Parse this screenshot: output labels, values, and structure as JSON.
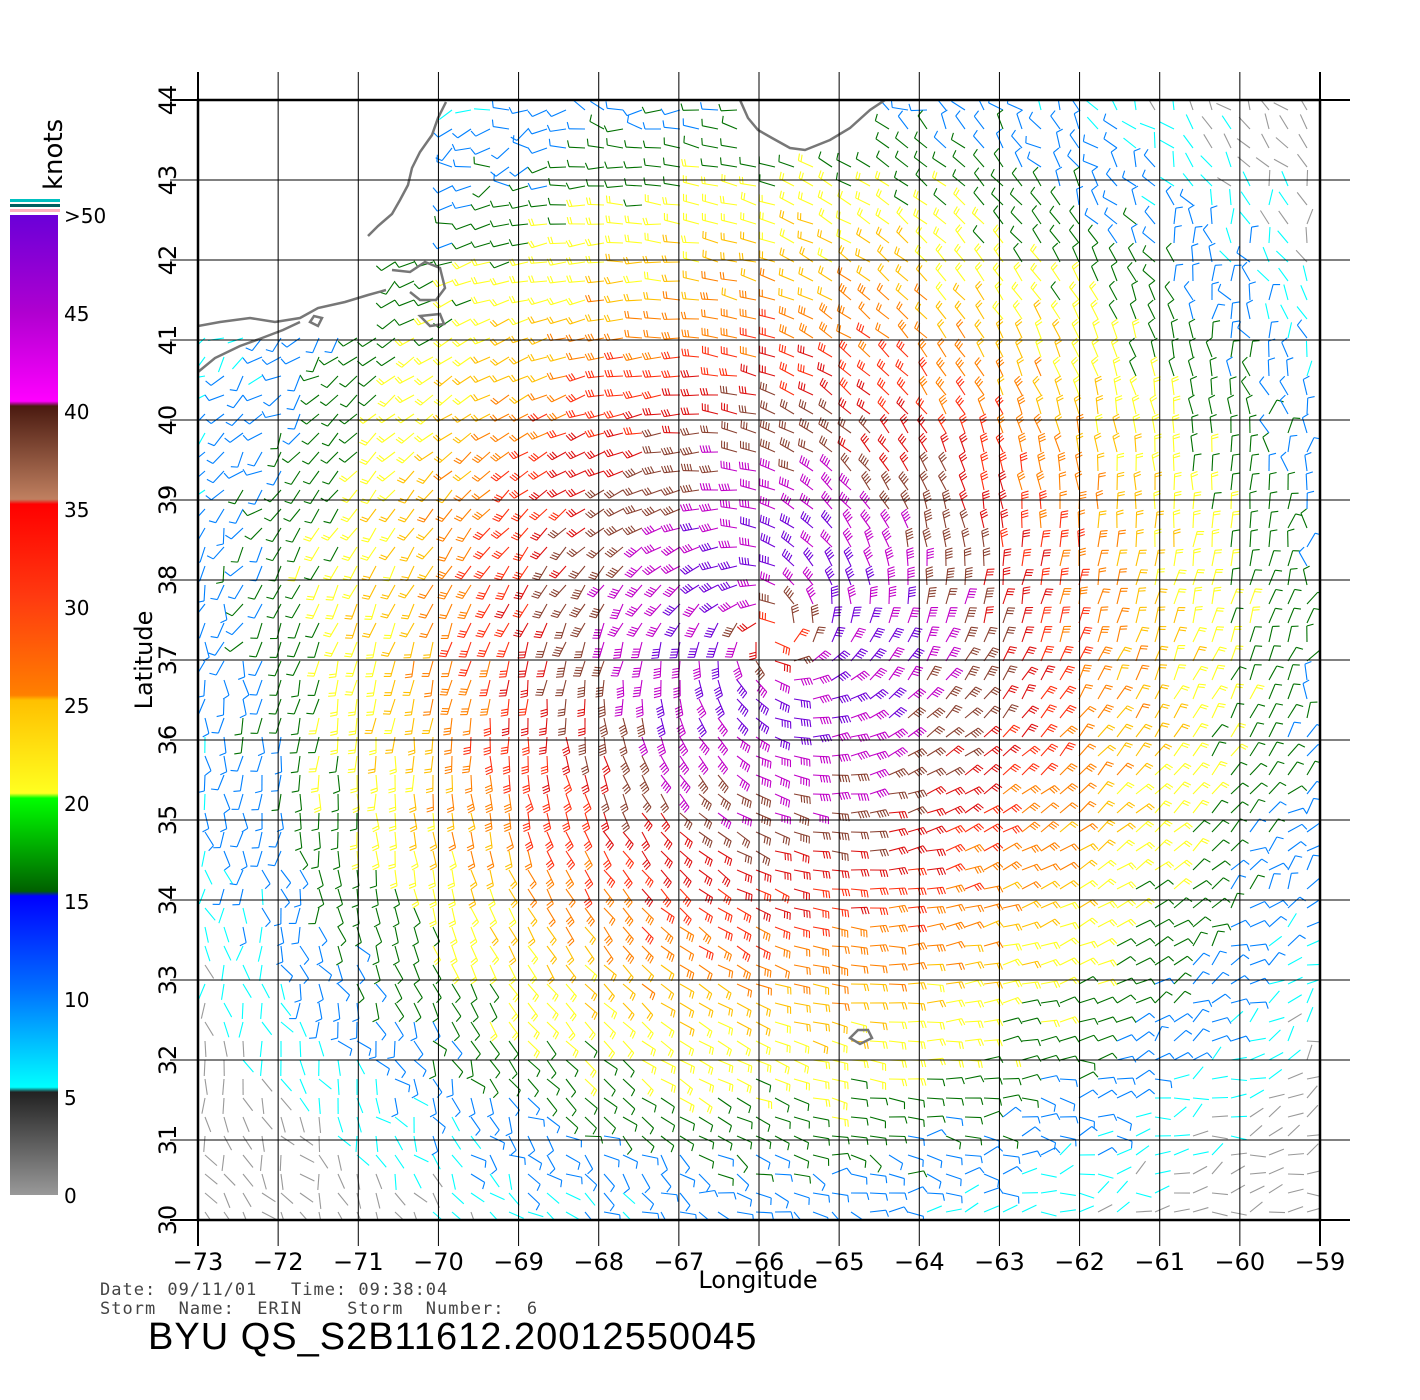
{
  "map": {
    "lon_ticks": [
      "−73",
      "−72",
      "−71",
      "−70",
      "−69",
      "−68",
      "−67",
      "−66",
      "−65",
      "−64",
      "−63",
      "−62",
      "−61",
      "−60",
      "−59"
    ],
    "lat_ticks": [
      "30",
      "31",
      "32",
      "33",
      "34",
      "35",
      "36",
      "37",
      "38",
      "39",
      "40",
      "41",
      "42",
      "43",
      "44"
    ],
    "x_axis_label": "Longitude",
    "y_axis_label": "Latitude",
    "lon_range": [
      -73,
      -59
    ],
    "lat_range": [
      30,
      44
    ],
    "storm_center": {
      "lon": -65.8,
      "lat": 37.3
    },
    "grid": true,
    "land_color": "#777777"
  },
  "legend": {
    "unit": "knots",
    "labels": [
      ">50",
      "45",
      "40",
      "35",
      "30",
      "25",
      "20",
      "15",
      "10",
      "5",
      "0"
    ],
    "stops": [
      {
        "knots": 50,
        "color": "#6a00d8"
      },
      {
        "knots": 45,
        "color": "#c400c8"
      },
      {
        "knots": 40,
        "color": "#4a1a10"
      },
      {
        "knots": 35,
        "color": "#c08060"
      },
      {
        "knots": 35,
        "color": "#ff1010"
      },
      {
        "knots": 30,
        "color": "#ff3010"
      },
      {
        "knots": 25,
        "color": "#ffc000"
      },
      {
        "knots": 20,
        "color": "#ffff20"
      },
      {
        "knots": 20,
        "color": "#00ff00"
      },
      {
        "knots": 15,
        "color": "#006000"
      },
      {
        "knots": 15,
        "color": "#0000ff"
      },
      {
        "knots": 10,
        "color": "#0080ff"
      },
      {
        "knots": 5,
        "color": "#00ffff"
      },
      {
        "knots": 5,
        "color": "#222222"
      },
      {
        "knots": 0,
        "color": "#999999"
      }
    ]
  },
  "footer": {
    "date_line": "Date: 09/11/01   Time: 09:38:04",
    "storm_line": "Storm  Name:  ERIN    Storm  Number:  6",
    "product": "BYU  QS_S2B11612.20012550045"
  }
}
